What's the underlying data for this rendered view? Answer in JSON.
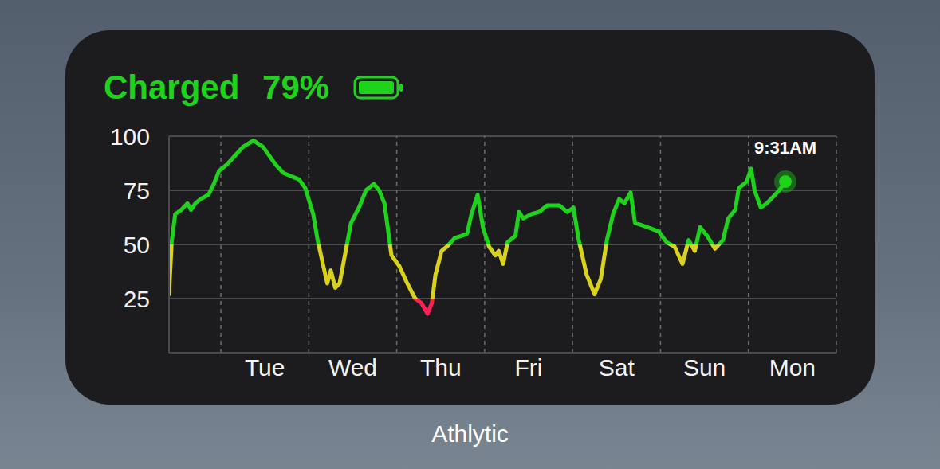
{
  "chart_data": {
    "type": "line",
    "title": "Charged 79%",
    "annotation": "9:31AM",
    "caption": "Athlytic",
    "x": [
      -0.59,
      -0.56,
      -0.52,
      -0.45,
      -0.38,
      -0.34,
      -0.29,
      -0.23,
      -0.14,
      -0.08,
      -0.02,
      0.07,
      0.16,
      0.25,
      0.37,
      0.48,
      0.62,
      0.71,
      0.89,
      0.96,
      1.05,
      1.1,
      1.16,
      1.21,
      1.25,
      1.3,
      1.35,
      1.41,
      1.48,
      1.57,
      1.65,
      1.74,
      1.8,
      1.86,
      1.94,
      2.03,
      2.12,
      2.21,
      2.28,
      2.35,
      2.4,
      2.44,
      2.51,
      2.57,
      2.66,
      2.74,
      2.8,
      2.85,
      2.92,
      2.98,
      3.05,
      3.12,
      3.16,
      3.21,
      3.26,
      3.35,
      3.39,
      3.44,
      3.53,
      3.62,
      3.71,
      3.85,
      3.94,
      4.01,
      4.07,
      4.16,
      4.25,
      4.32,
      4.39,
      4.46,
      4.53,
      4.59,
      4.66,
      4.71,
      4.85,
      4.98,
      5.07,
      5.16,
      5.25,
      5.32,
      5.39,
      5.45,
      5.53,
      5.62,
      5.71,
      5.77,
      5.85,
      5.89,
      5.98,
      6.03,
      6.07,
      6.14,
      6.21,
      6.28,
      6.35,
      6.42
    ],
    "values": [
      27,
      51,
      64,
      66,
      69,
      66,
      69,
      71,
      73,
      78,
      84,
      87,
      91,
      95,
      98,
      95,
      87,
      83,
      80,
      76,
      64,
      52,
      41,
      32,
      38,
      30,
      32,
      45,
      60,
      67,
      75,
      78,
      75,
      69,
      45,
      40,
      32,
      25,
      23,
      18,
      23,
      36,
      47,
      49,
      53,
      54,
      55,
      64,
      73,
      58,
      49,
      45,
      47,
      41,
      51,
      54,
      65,
      62,
      64,
      65,
      68,
      68,
      65,
      67,
      52,
      36,
      27,
      34,
      52,
      64,
      71,
      69,
      74,
      60,
      58,
      56,
      51,
      49,
      41,
      52,
      47,
      58,
      54,
      48,
      52,
      62,
      66,
      76,
      79,
      85,
      75,
      67,
      69,
      72,
      75,
      79
    ],
    "xlim": [
      -0.59,
      7
    ],
    "ylim": [
      0,
      100
    ],
    "xticks": [
      {
        "value": 0.5,
        "label": "Tue"
      },
      {
        "value": 1.5,
        "label": "Wed"
      },
      {
        "value": 2.5,
        "label": "Thu"
      },
      {
        "value": 3.5,
        "label": "Fri"
      },
      {
        "value": 4.5,
        "label": "Sat"
      },
      {
        "value": 5.5,
        "label": "Sun"
      },
      {
        "value": 6.5,
        "label": "Mon"
      }
    ],
    "yticks": [
      25,
      50,
      75,
      100
    ],
    "grid": true,
    "color_bands": [
      {
        "min": 0,
        "max": 25,
        "color": "#ff2056"
      },
      {
        "min": 25,
        "max": 50,
        "color": "#d8d21c"
      },
      {
        "min": 50,
        "max": 100,
        "color": "#1fd21c"
      }
    ]
  }
}
